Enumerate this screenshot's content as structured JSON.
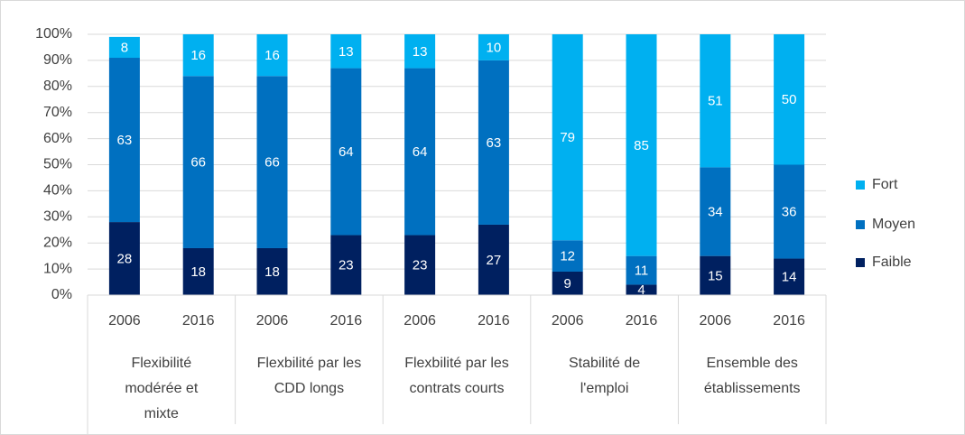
{
  "chart_data": {
    "type": "stacked_bar",
    "categories": [
      "2006",
      "2016",
      "2006",
      "2016",
      "2006",
      "2016",
      "2006",
      "2016",
      "2006",
      "2016"
    ],
    "groups": [
      {
        "lines": [
          "Flexibilité",
          "modérée et",
          "mixte"
        ]
      },
      {
        "lines": [
          "Flexbilité par les",
          "CDD longs"
        ]
      },
      {
        "lines": [
          "Flexbilité par les",
          "contrats courts"
        ]
      },
      {
        "lines": [
          "Stabilité de",
          "l'emploi"
        ]
      },
      {
        "lines": [
          "Ensemble des",
          "établissements"
        ]
      }
    ],
    "series": [
      {
        "name": "Faible",
        "color": "#002060",
        "values": [
          28,
          18,
          18,
          23,
          23,
          27,
          9,
          4,
          15,
          14
        ]
      },
      {
        "name": "Moyen",
        "color": "#0070c0",
        "values": [
          63,
          66,
          66,
          64,
          64,
          63,
          12,
          11,
          34,
          36
        ]
      },
      {
        "name": "Fort",
        "color": "#00b0f0",
        "values": [
          8,
          16,
          16,
          13,
          13,
          10,
          79,
          85,
          51,
          50
        ]
      }
    ],
    "ylim": [
      0,
      100
    ],
    "yticks": [
      {
        "value": 0,
        "label": "0%"
      },
      {
        "value": 10,
        "label": "10%"
      },
      {
        "value": 20,
        "label": "20%"
      },
      {
        "value": 30,
        "label": "30%"
      },
      {
        "value": 40,
        "label": "40%"
      },
      {
        "value": 50,
        "label": "50%"
      },
      {
        "value": 60,
        "label": "60%"
      },
      {
        "value": 70,
        "label": "70%"
      },
      {
        "value": 80,
        "label": "80%"
      },
      {
        "value": 90,
        "label": "90%"
      },
      {
        "value": 100,
        "label": "100%"
      }
    ],
    "grid": true,
    "legend": "right"
  }
}
